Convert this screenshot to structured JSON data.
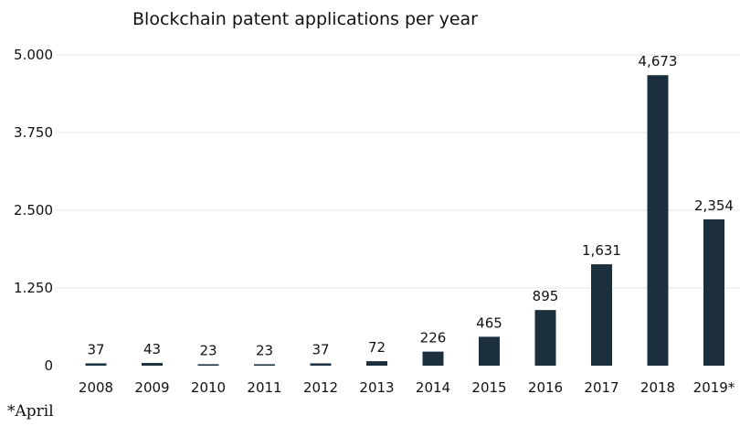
{
  "chart_data": {
    "type": "bar",
    "title": "Blockchain patent applications per year",
    "categories": [
      "2008",
      "2009",
      "2010",
      "2011",
      "2012",
      "2013",
      "2014",
      "2015",
      "2016",
      "2017",
      "2018",
      "2019*"
    ],
    "values": [
      37,
      43,
      23,
      23,
      37,
      72,
      226,
      465,
      895,
      1631,
      4673,
      2354
    ],
    "value_labels": [
      "37",
      "43",
      "23",
      "23",
      "37",
      "72",
      "226",
      "465",
      "895",
      "1,631",
      "4,673",
      "2,354"
    ],
    "y_ticks": [
      0,
      1250,
      2500,
      3750,
      5000
    ],
    "y_tick_labels": [
      "0",
      "1.250",
      "2.500",
      "3.750",
      "5.000"
    ],
    "ylim": [
      0,
      5000
    ],
    "grid": true,
    "legend": "none",
    "bar_color": "#1c2f3c",
    "footnote": "*April"
  }
}
